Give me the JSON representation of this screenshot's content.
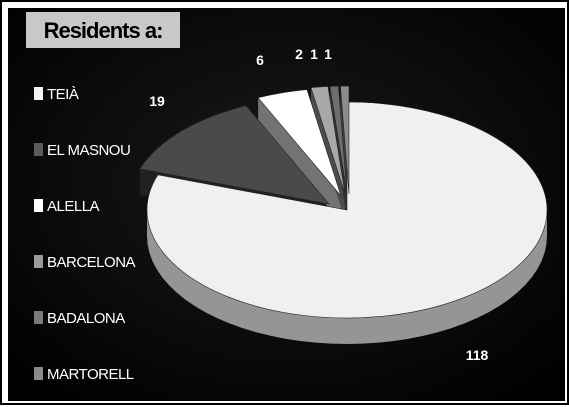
{
  "colors": {
    "background": "#000000",
    "title_box": "#c8c8c8",
    "title_text": "#000000",
    "label_text": "#ffffff",
    "frame": "#ffffff"
  },
  "chart_data": {
    "type": "pie",
    "style": "3d-exploded",
    "title": "Residents a:",
    "legend_position": "left",
    "slices": [
      {
        "label": "TEIÀ",
        "value": 118,
        "color": "#f0f0f0",
        "legend_color": "#f2f2f2"
      },
      {
        "label": "EL MASNOU",
        "value": 19,
        "color": "#4a4a4a",
        "legend_color": "#5a5a5a"
      },
      {
        "label": "ALELLA",
        "value": 6,
        "color": "#ffffff",
        "legend_color": "#ffffff"
      },
      {
        "label": "BARCELONA",
        "value": 2,
        "color": "#a8a8a8",
        "legend_color": "#9a9a9a"
      },
      {
        "label": "BADALONA",
        "value": 1,
        "color": "#6e6e6e",
        "legend_color": "#7a7a7a"
      },
      {
        "label": "MARTORELL",
        "value": 1,
        "color": "#8c8c8c",
        "legend_color": "#8a8a8a"
      }
    ]
  }
}
